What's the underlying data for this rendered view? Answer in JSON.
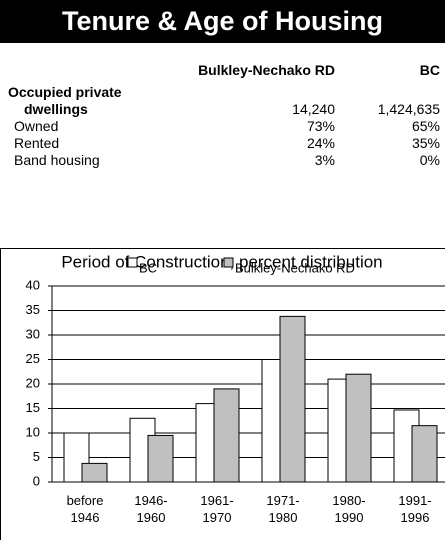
{
  "header": {
    "title": "Tenure & Age of Housing"
  },
  "table": {
    "columns": [
      "Bulkley-Nechako RD",
      "BC"
    ],
    "rows": [
      {
        "label": [
          "Occupied private",
          "dwellings"
        ],
        "values": [
          "14,240",
          "1,424,635"
        ]
      },
      {
        "label": [
          "Owned"
        ],
        "values": [
          "73%",
          "65%"
        ]
      },
      {
        "label": [
          "Rented"
        ],
        "values": [
          "24%",
          "35%"
        ]
      },
      {
        "label": [
          "Band housing"
        ],
        "values": [
          "3%",
          "0%"
        ]
      }
    ]
  },
  "chart_data": {
    "type": "bar",
    "title": "Period of Construction, percent distribution",
    "categories": [
      "before 1946",
      "1946-1960",
      "1961-1970",
      "1971-1980",
      "1980-1990",
      "1991-1996"
    ],
    "series": [
      {
        "name": "BC",
        "color": "#ffffff",
        "values": [
          10,
          13,
          16,
          25,
          21,
          14.7
        ]
      },
      {
        "name": "Bulkley-Nechako RD",
        "color": "#c0c0c0",
        "values": [
          3.8,
          9.5,
          19,
          33.8,
          22,
          11.5
        ]
      }
    ],
    "ylim": [
      0,
      40
    ],
    "yticks": [
      0,
      5,
      10,
      15,
      20,
      25,
      30,
      35,
      40
    ],
    "grid": true
  }
}
